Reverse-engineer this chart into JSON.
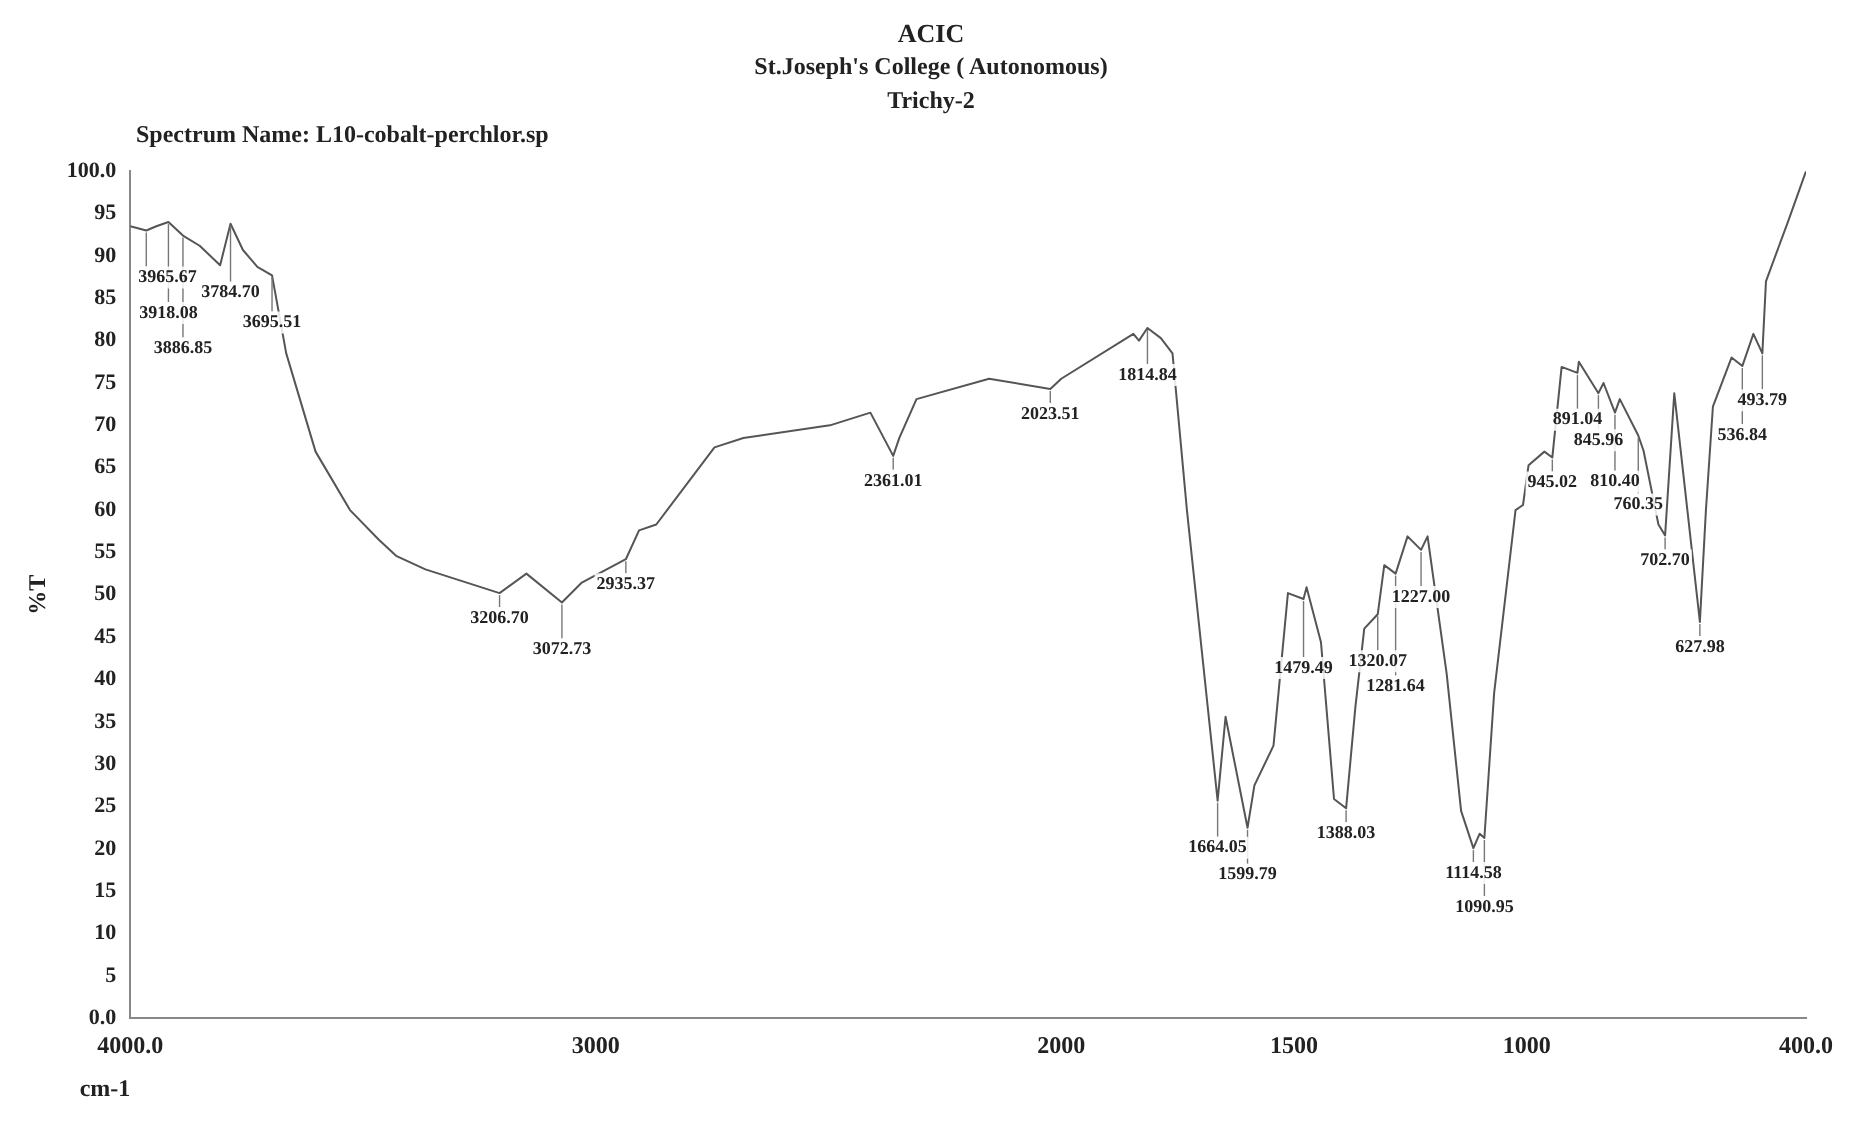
{
  "chart_data": {
    "type": "line",
    "title": "ACIC",
    "subtitle": "St.Joseph's College ( Autonomous)",
    "annotations": [
      "Trichy-2",
      "Spectrum Name: L10-cobalt-perchlor.sp",
      {
        "text": "3965.67",
        "x": 3965.67,
        "y": 93
      },
      {
        "text": "3918.08",
        "x": 3918.08,
        "y": 94
      },
      {
        "text": "3886.85",
        "x": 3886.85,
        "y": 92.4
      },
      {
        "text": "3784.70",
        "x": 3784.7,
        "y": 93.8
      },
      {
        "text": "3695.51",
        "x": 3695.51,
        "y": 87.7
      },
      {
        "text": "3206.70",
        "x": 3206.7,
        "y": 50.2
      },
      {
        "text": "3072.73",
        "x": 3072.73,
        "y": 49.1
      },
      {
        "text": "2935.37",
        "x": 2935.37,
        "y": 54.2
      },
      {
        "text": "2361.01",
        "x": 2361.01,
        "y": 66.4
      },
      {
        "text": "2023.51",
        "x": 2023.51,
        "y": 74.3
      },
      {
        "text": "1814.84",
        "x": 1814.84,
        "y": 81.5
      },
      {
        "text": "1664.05",
        "x": 1664.05,
        "y": 25.7
      },
      {
        "text": "1599.79",
        "x": 1599.79,
        "y": 22.5
      },
      {
        "text": "1479.49",
        "x": 1479.49,
        "y": 49.5
      },
      {
        "text": "1388.03",
        "x": 1388.03,
        "y": 24.8
      },
      {
        "text": "1320.07",
        "x": 1320.07,
        "y": 47.7
      },
      {
        "text": "1281.64",
        "x": 1281.64,
        "y": 52.5
      },
      {
        "text": "1227.00",
        "x": 1227.0,
        "y": 55.3
      },
      {
        "text": "1114.58",
        "x": 1114.58,
        "y": 20.1
      },
      {
        "text": "1090.95",
        "x": 1090.95,
        "y": 21.3
      },
      {
        "text": "945.02",
        "x": 945.02,
        "y": 66.2
      },
      {
        "text": "891.04",
        "x": 891.04,
        "y": 76.2
      },
      {
        "text": "845.96",
        "x": 845.96,
        "y": 73.8
      },
      {
        "text": "810.40",
        "x": 810.4,
        "y": 71.5
      },
      {
        "text": "760.35",
        "x": 760.35,
        "y": 68.8
      },
      {
        "text": "702.70",
        "x": 702.7,
        "y": 57
      },
      {
        "text": "627.98",
        "x": 627.98,
        "y": 46.8
      },
      {
        "text": "536.84",
        "x": 536.84,
        "y": 77
      },
      {
        "text": "493.79",
        "x": 493.79,
        "y": 78.5
      }
    ],
    "xlabel": "cm-1",
    "ylabel": "%T",
    "x": [
      4000,
      3965.67,
      3944,
      3918.08,
      3886.85,
      3851,
      3807,
      3784.7,
      3758,
      3727,
      3695.51,
      3665,
      3602,
      3528,
      3466,
      3429,
      3366,
      3206.7,
      3149,
      3072.73,
      3031,
      2935.37,
      2907,
      2870,
      2745,
      2683,
      2497,
      2410,
      2361.01,
      2348,
      2311,
      2155,
      2023.51,
      2000,
      1845,
      1833,
      1814.84,
      1786,
      1761,
      1730,
      1664.05,
      1647,
      1599.79,
      1585,
      1544,
      1513,
      1479.49,
      1473,
      1442,
      1414,
      1388.03,
      1368,
      1349,
      1320.07,
      1306,
      1281.64,
      1256,
      1227.0,
      1213,
      1172,
      1141,
      1114.58,
      1101,
      1090.95,
      1070,
      1024,
      1008,
      996,
      962,
      945.02,
      925,
      891.04,
      888,
      845.96,
      835,
      810.4,
      800,
      760.35,
      749,
      717,
      702.7,
      683,
      627.98,
      615,
      600,
      560,
      536.84,
      513,
      493.79,
      486,
      439,
      400
    ],
    "series": [
      {
        "color": "#555555",
        "values": [
          93.5,
          93,
          93.5,
          94,
          92.4,
          91.2,
          88.9,
          93.8,
          90.7,
          88.7,
          87.7,
          78.5,
          66.9,
          60,
          56.5,
          54.6,
          53,
          50.2,
          52.5,
          49.1,
          51.4,
          54.2,
          57.6,
          58.3,
          67.4,
          68.5,
          70,
          71.5,
          66.4,
          68.5,
          73.1,
          75.5,
          74.3,
          75.5,
          80.8,
          80,
          81.5,
          80.3,
          78.5,
          60,
          25.7,
          35.6,
          22.5,
          27.5,
          32.2,
          50.2,
          49.5,
          50.9,
          44.4,
          25.9,
          24.8,
          36.8,
          46,
          47.7,
          53.5,
          52.5,
          56.9,
          55.3,
          56.9,
          40.7,
          24.5,
          20.1,
          21.8,
          21.3,
          38.4,
          60,
          60.6,
          65.3,
          66.9,
          66.2,
          76.9,
          76.2,
          77.5,
          73.8,
          75,
          71.5,
          73.1,
          68.8,
          67,
          58.3,
          57,
          73.8,
          46.8,
          60,
          72.2,
          78,
          77,
          80.8,
          78.5,
          87,
          94,
          100
        ]
      }
    ],
    "xlim": [
      4000,
      400
    ],
    "xticks": [
      {
        "value": 4000,
        "label": "4000.0"
      },
      3000,
      2000,
      1500,
      1000,
      {
        "value": 400,
        "label": "400.0"
      }
    ],
    "ylim": [
      0,
      100
    ],
    "yticks": [
      {
        "value": 0,
        "label": "0.0"
      },
      5,
      10,
      15,
      20,
      25,
      30,
      35,
      40,
      45,
      50,
      55,
      60,
      65,
      70,
      75,
      80,
      85,
      90,
      95,
      {
        "value": 100,
        "label": "100.0"
      }
    ],
    "grid": false,
    "legend": false,
    "marker": "none",
    "line_style": "solid"
  }
}
